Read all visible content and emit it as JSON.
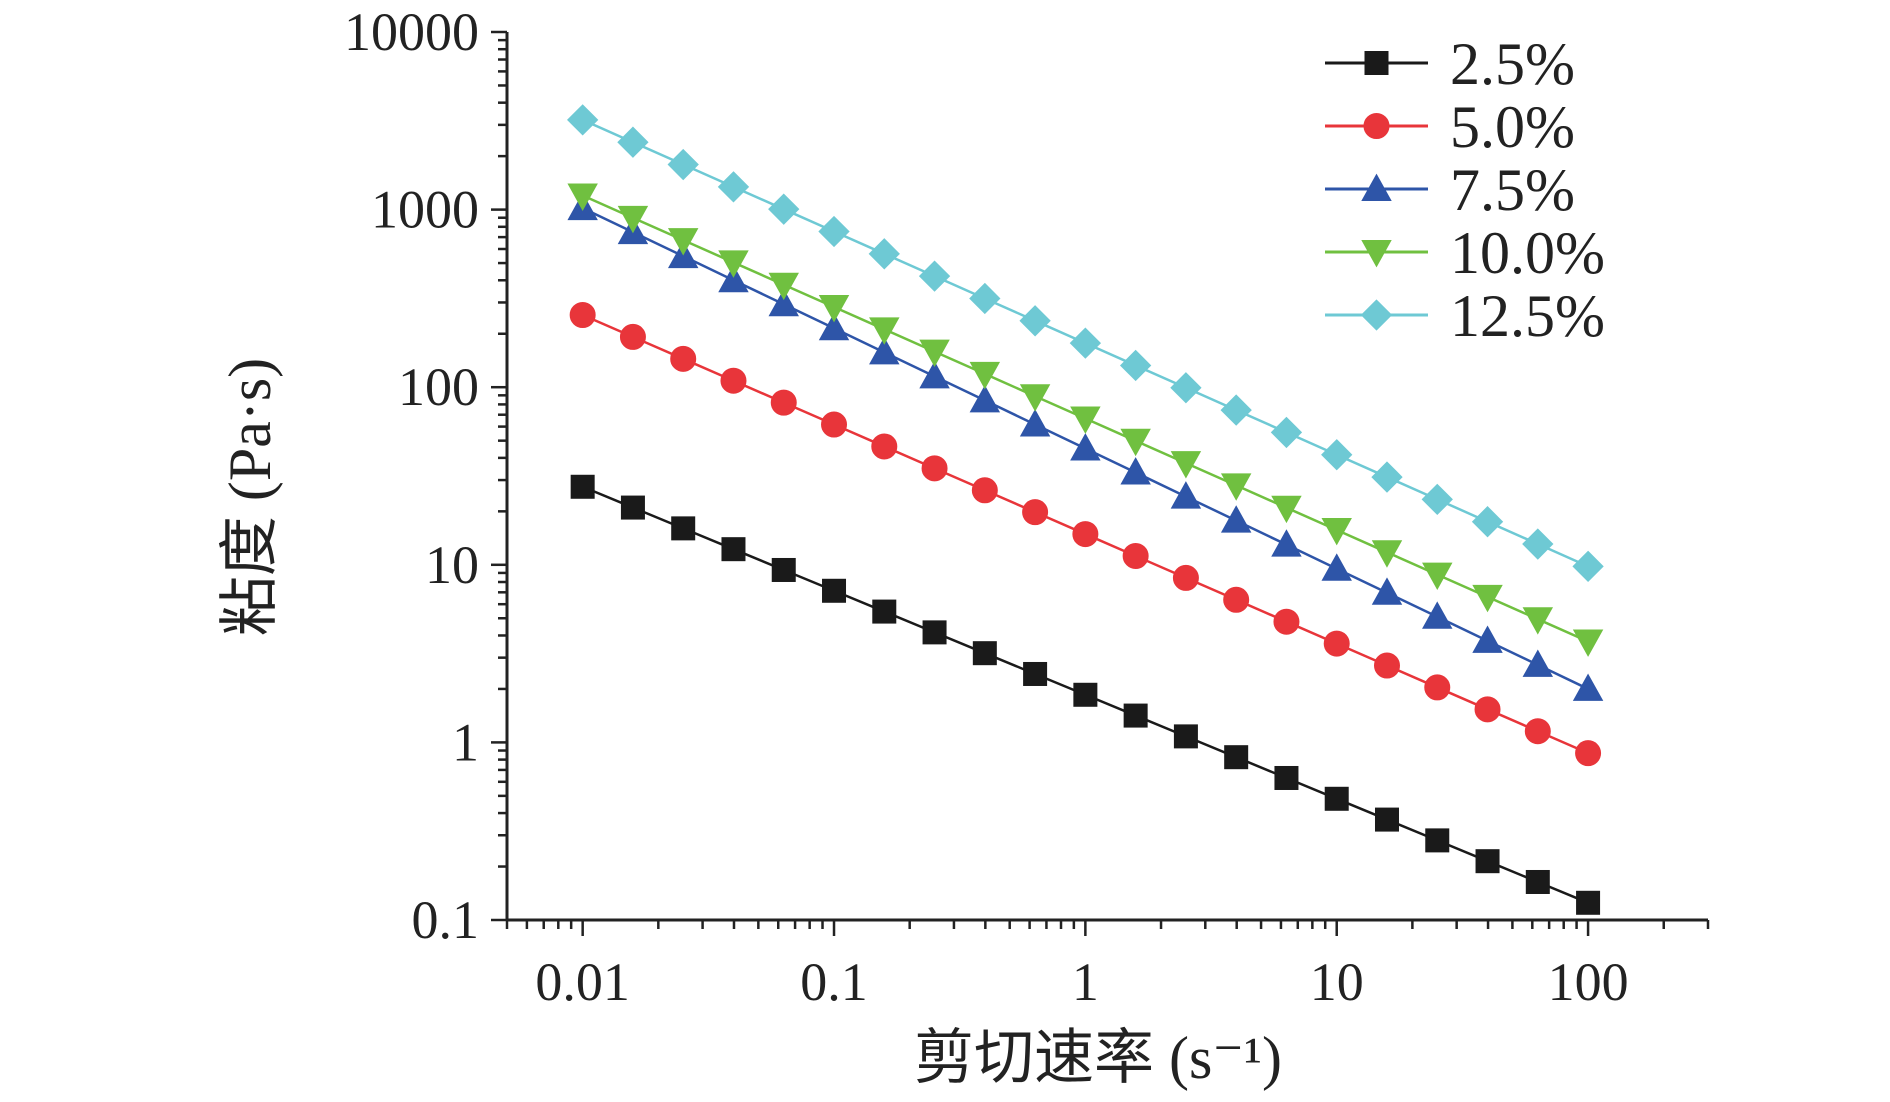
{
  "chart_data": {
    "type": "scatter",
    "xscale": "log",
    "yscale": "log",
    "xlim": [
      0.005,
      300
    ],
    "ylim": [
      0.1,
      10000
    ],
    "xticks": [
      0.01,
      0.1,
      1,
      10,
      100
    ],
    "xtick_labels": [
      "0.01",
      "0.1",
      "1",
      "10",
      "100"
    ],
    "yticks": [
      0.1,
      1,
      10,
      100,
      1000,
      10000
    ],
    "ytick_labels": [
      "0.1",
      "1",
      "10",
      "100",
      "1000",
      "10000"
    ],
    "xlabel": "剪切速率 (s⁻¹)",
    "ylabel": "粘度 (Pa·s)",
    "grid": false,
    "legend_position": "top-right",
    "points_per_decade": 5,
    "x_range": [
      0.01,
      100
    ],
    "series": [
      {
        "name": "2.5%",
        "marker": "square",
        "color": "#1a1a1a",
        "y_start": 27.5,
        "y_end": 0.125
      },
      {
        "name": "5.0%",
        "marker": "circle",
        "color": "#e8353a",
        "y_start": 255,
        "y_end": 0.87
      },
      {
        "name": "7.5%",
        "marker": "triangle-up",
        "color": "#2e55a8",
        "y_start": 1020,
        "y_end": 2.0
      },
      {
        "name": "10.0%",
        "marker": "triangle-down",
        "color": "#70c040",
        "y_start": 1200,
        "y_end": 3.7
      },
      {
        "name": "12.5%",
        "marker": "diamond",
        "color": "#6ec9d4",
        "y_start": 3200,
        "y_end": 9.8
      }
    ]
  }
}
